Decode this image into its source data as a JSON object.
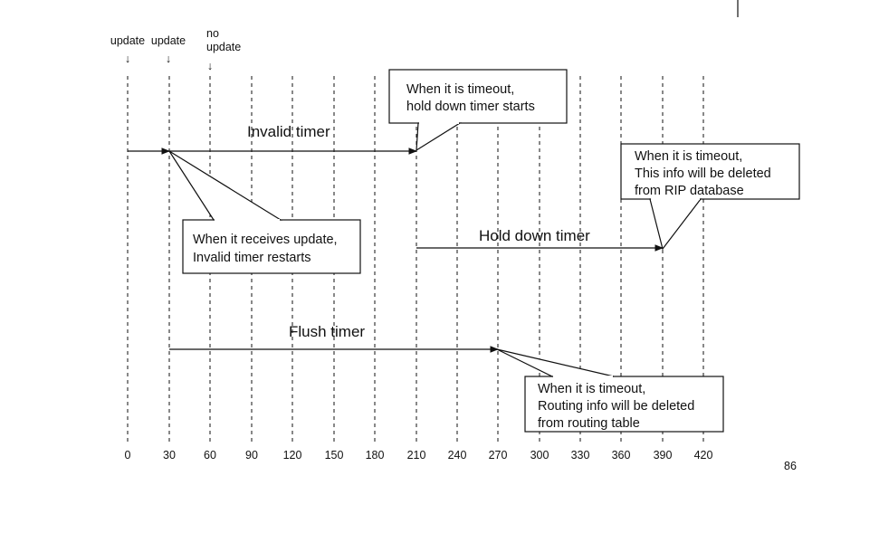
{
  "top_labels": [
    {
      "lines": [
        "update"
      ],
      "arrow": "↓"
    },
    {
      "lines": [
        "update"
      ],
      "arrow": "↓"
    },
    {
      "lines": [
        "no",
        "update"
      ],
      "arrow": "↓"
    }
  ],
  "time_ticks": [
    "0",
    "30",
    "60",
    "90",
    "120",
    "150",
    "180",
    "210",
    "240",
    "270",
    "300",
    "330",
    "360",
    "390",
    "420"
  ],
  "timers": {
    "invalid": "Invalid timer",
    "hold_down": "Hold down timer",
    "flush": "Flush timer"
  },
  "notes": {
    "invalid_timeout": [
      "When it is timeout,",
      "hold down timer starts"
    ],
    "receives_update": [
      "When it receives update,",
      "Invalid timer restarts"
    ],
    "hold_timeout": [
      "When it is timeout,",
      "This info will be deleted",
      "from RIP database"
    ],
    "flush_timeout": [
      "When it is timeout,",
      "Routing info will be deleted",
      "from routing table"
    ]
  },
  "page_number": "86"
}
